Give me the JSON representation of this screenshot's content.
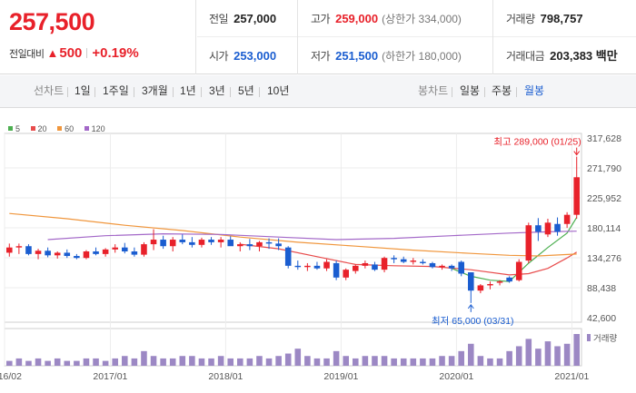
{
  "quote": {
    "price": "257,500",
    "change_label": "전일대비",
    "change_arrow": "▲",
    "change": "500",
    "change_pct": "+0.19%",
    "stats": {
      "prev_close_label": "전일",
      "prev_close": "257,000",
      "high_label": "고가",
      "high": "259,000",
      "upper_limit": "(상한가 334,000)",
      "volume_label": "거래량",
      "volume": "798,757",
      "open_label": "시가",
      "open": "253,000",
      "low_label": "저가",
      "low": "251,500",
      "lower_limit": "(하한가 180,000)",
      "turnover_label": "거래대금",
      "turnover": "203,383 백만"
    },
    "colors": {
      "up": "#e8212a",
      "down": "#1a5dd0"
    }
  },
  "tabs": {
    "line_label": "선차트",
    "line_periods": [
      "1일",
      "1주일",
      "3개월",
      "1년",
      "3년",
      "5년",
      "10년"
    ],
    "candle_label": "봉차트",
    "candle_periods": [
      "일봉",
      "주봉",
      "월봉"
    ],
    "active_candle": "월봉"
  },
  "chart_data": {
    "type": "candlestick",
    "legend": [
      {
        "name": "5",
        "color": "#4caf50"
      },
      {
        "name": "20",
        "color": "#e84c4c"
      },
      {
        "name": "60",
        "color": "#f0963c"
      },
      {
        "name": "120",
        "color": "#a368c8"
      }
    ],
    "y_ticks": [
      "317,628",
      "271,790",
      "225,952",
      "180,114",
      "134,276",
      "88,438",
      "42,600"
    ],
    "ylim": [
      42600,
      317628
    ],
    "x_ticks": [
      {
        "label": "2016/02",
        "index": 0
      },
      {
        "label": "2017/01",
        "index": 11
      },
      {
        "label": "2018/01",
        "index": 23
      },
      {
        "label": "2019/01",
        "index": 35
      },
      {
        "label": "2020/01",
        "index": 47
      },
      {
        "label": "2021/01",
        "index": 59
      }
    ],
    "candles": [
      [
        142000,
        156000,
        136000,
        150000
      ],
      [
        150000,
        156000,
        140000,
        152000
      ],
      [
        152000,
        155000,
        138000,
        140000
      ],
      [
        140000,
        148000,
        132000,
        145000
      ],
      [
        145000,
        150000,
        135000,
        138000
      ],
      [
        138000,
        144000,
        133000,
        142000
      ],
      [
        142000,
        147000,
        134000,
        137000
      ],
      [
        137000,
        140000,
        132000,
        134000
      ],
      [
        134000,
        146000,
        132000,
        144000
      ],
      [
        144000,
        150000,
        138000,
        140000
      ],
      [
        140000,
        149000,
        136000,
        147000
      ],
      [
        147000,
        155000,
        142000,
        150000
      ],
      [
        150000,
        157000,
        141000,
        144000
      ],
      [
        144000,
        150000,
        136000,
        139000
      ],
      [
        139000,
        158000,
        136000,
        155000
      ],
      [
        155000,
        178000,
        146000,
        162000
      ],
      [
        162000,
        168000,
        148000,
        152000
      ],
      [
        152000,
        166000,
        144000,
        162000
      ],
      [
        162000,
        170000,
        155000,
        158000
      ],
      [
        158000,
        166000,
        150000,
        154000
      ],
      [
        154000,
        165000,
        150000,
        162000
      ],
      [
        162000,
        166000,
        154000,
        158000
      ],
      [
        158000,
        166000,
        150000,
        162000
      ],
      [
        162000,
        167000,
        154000,
        152000
      ],
      [
        152000,
        158000,
        144000,
        155000
      ],
      [
        155000,
        163000,
        146000,
        152000
      ],
      [
        152000,
        160000,
        144000,
        158000
      ],
      [
        158000,
        164000,
        148000,
        156000
      ],
      [
        156000,
        164000,
        146000,
        152000
      ],
      [
        150000,
        152000,
        118000,
        122000
      ],
      [
        122000,
        130000,
        116000,
        120000
      ],
      [
        120000,
        126000,
        114000,
        122000
      ],
      [
        122000,
        128000,
        116000,
        118000
      ],
      [
        118000,
        132000,
        114000,
        128000
      ],
      [
        126000,
        130000,
        100000,
        104000
      ],
      [
        104000,
        118000,
        100000,
        116000
      ],
      [
        114000,
        124000,
        110000,
        122000
      ],
      [
        122000,
        130000,
        118000,
        126000
      ],
      [
        124000,
        128000,
        114000,
        116000
      ],
      [
        116000,
        136000,
        112000,
        134000
      ],
      [
        134000,
        138000,
        126000,
        132000
      ],
      [
        132000,
        136000,
        126000,
        128000
      ],
      [
        128000,
        134000,
        124000,
        130000
      ],
      [
        128000,
        132000,
        124000,
        126000
      ],
      [
        126000,
        128000,
        118000,
        120000
      ],
      [
        120000,
        124000,
        116000,
        122000
      ],
      [
        122000,
        124000,
        114000,
        118000
      ],
      [
        128000,
        130000,
        106000,
        110000
      ],
      [
        112000,
        112000,
        65000,
        84000
      ],
      [
        84000,
        94000,
        80000,
        92000
      ],
      [
        92000,
        98000,
        86000,
        94000
      ],
      [
        96000,
        100000,
        92000,
        98000
      ],
      [
        104000,
        106000,
        96000,
        98000
      ],
      [
        100000,
        132000,
        98000,
        128000
      ],
      [
        130000,
        188000,
        126000,
        184000
      ],
      [
        184000,
        195000,
        160000,
        174000
      ],
      [
        170000,
        194000,
        166000,
        188000
      ],
      [
        186000,
        196000,
        168000,
        174000
      ],
      [
        186000,
        204000,
        180000,
        200000
      ],
      [
        200000,
        289000,
        194000,
        257500
      ]
    ],
    "ma": {
      "5": [
        [
          46,
          118000
        ],
        [
          48,
          106000
        ],
        [
          50,
          100000
        ],
        [
          52,
          98000
        ],
        [
          54,
          126000
        ],
        [
          56,
          150000
        ],
        [
          58,
          172000
        ],
        [
          59,
          196000
        ]
      ],
      "20": [
        [
          24,
          155000
        ],
        [
          28,
          148000
        ],
        [
          32,
          136000
        ],
        [
          36,
          124000
        ],
        [
          40,
          122000
        ],
        [
          44,
          121000
        ],
        [
          48,
          116000
        ],
        [
          52,
          108000
        ],
        [
          54,
          110000
        ],
        [
          56,
          118000
        ],
        [
          58,
          134000
        ],
        [
          59,
          143000
        ]
      ],
      "60": [
        [
          0,
          202000
        ],
        [
          6,
          194000
        ],
        [
          12,
          184000
        ],
        [
          18,
          176000
        ],
        [
          24,
          166000
        ],
        [
          30,
          158000
        ],
        [
          36,
          152000
        ],
        [
          42,
          146000
        ],
        [
          48,
          141000
        ],
        [
          52,
          138000
        ],
        [
          55,
          137000
        ],
        [
          59,
          140000
        ]
      ],
      "120": [
        [
          4,
          162000
        ],
        [
          10,
          168000
        ],
        [
          16,
          171000
        ],
        [
          22,
          170000
        ],
        [
          28,
          166000
        ],
        [
          34,
          162000
        ],
        [
          40,
          164000
        ],
        [
          46,
          168000
        ],
        [
          52,
          172000
        ],
        [
          56,
          174000
        ],
        [
          59,
          175000
        ]
      ]
    },
    "volume": [
      2,
      3,
      2,
      3,
      2,
      3,
      2,
      2,
      3,
      3,
      2,
      3,
      4,
      3,
      6,
      4,
      3,
      3,
      4,
      4,
      3,
      3,
      4,
      3,
      3,
      3,
      4,
      3,
      4,
      5,
      7,
      4,
      3,
      3,
      6,
      4,
      3,
      4,
      4,
      4,
      3,
      3,
      3,
      3,
      3,
      4,
      4,
      6,
      9,
      4,
      3,
      3,
      6,
      8,
      11,
      7,
      10,
      8,
      9,
      13
    ],
    "volume_label": "거래량",
    "high_annotation": "최고 289,000 (01/25)",
    "low_annotation": "최저 65,000 (03/31)"
  }
}
